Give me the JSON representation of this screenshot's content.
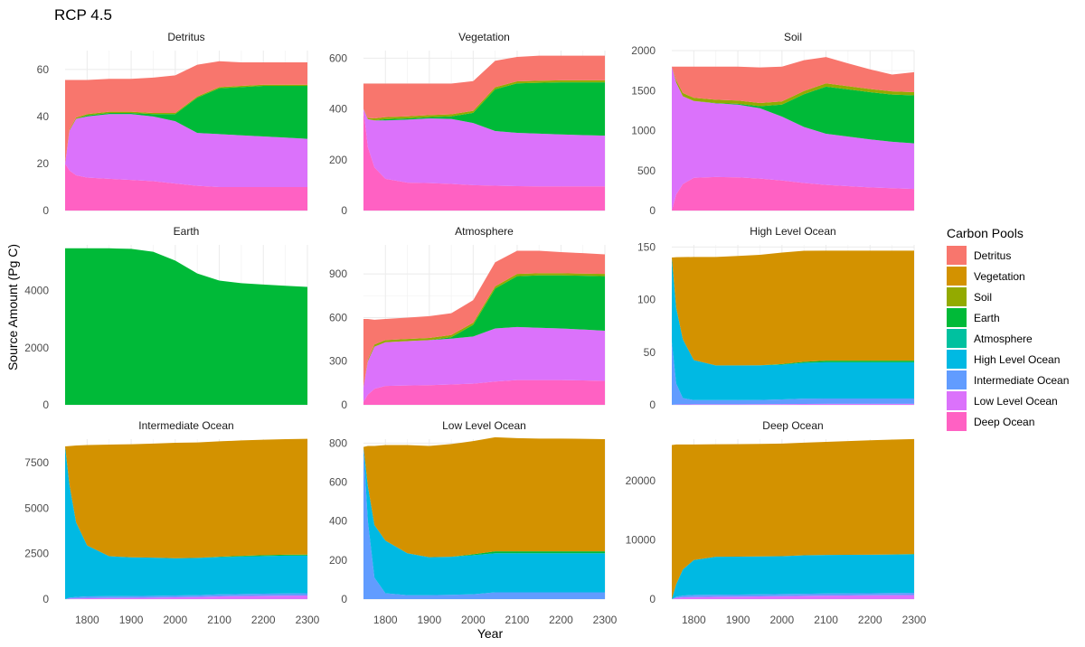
{
  "title": "RCP 4.5",
  "x_axis_title": "Year",
  "y_axis_title": "Source Amount (Pg C)",
  "legend": {
    "title": "Carbon Pools",
    "items": [
      {
        "label": "Detritus",
        "color": "#F8766D"
      },
      {
        "label": "Vegetation",
        "color": "#D39200"
      },
      {
        "label": "Soil",
        "color": "#93AA00"
      },
      {
        "label": "Earth",
        "color": "#00BA38"
      },
      {
        "label": "Atmosphere",
        "color": "#00C19F"
      },
      {
        "label": "High Level Ocean",
        "color": "#00B9E3"
      },
      {
        "label": "Intermediate Ocean",
        "color": "#619CFF"
      },
      {
        "label": "Low Level Ocean",
        "color": "#DB72FB"
      },
      {
        "label": "Deep Ocean",
        "color": "#FF61C3"
      }
    ]
  },
  "chart_data": {
    "type": "area",
    "stacking": "stacked",
    "layout": "facet grid 3x3",
    "shared_x": true,
    "x_ticks": [
      1800,
      1900,
      2000,
      2100,
      2200,
      2300
    ],
    "xlim": [
      1750,
      2300
    ],
    "x": [
      1750,
      1760,
      1775,
      1800,
      1850,
      1900,
      1950,
      2000,
      2050,
      2100,
      2150,
      2200,
      2250,
      2300
    ],
    "grid": true,
    "legend_position": "right",
    "panels": [
      {
        "name": "Detritus",
        "ylim": [
          0,
          68
        ],
        "y_ticks": [
          0,
          20,
          40,
          60
        ],
        "series": [
          {
            "name": "Deep Ocean",
            "values": [
              20,
              17,
              15,
              14,
              13.5,
              13,
              12.5,
              11.5,
              10.5,
              10,
              10,
              10,
              10,
              10
            ]
          },
          {
            "name": "Low Level Ocean",
            "values": [
              0,
              17,
              24,
              26,
              27.5,
              28,
              27.5,
              26.5,
              22.5,
              22.5,
              22,
              21.5,
              21,
              20.5
            ]
          },
          {
            "name": "Earth",
            "values": [
              0,
              0,
              0,
              0.5,
              0.5,
              0.5,
              1,
              3,
              15,
              19.5,
              20.5,
              21.5,
              22,
              22.5
            ]
          },
          {
            "name": "Soil",
            "values": [
              0,
              0.5,
              0.5,
              0.5,
              0.5,
              0.5,
              0.5,
              0.5,
              0.5,
              0.5,
              0.5,
              0.5,
              0.5,
              0.5
            ]
          },
          {
            "name": "Detritus",
            "values": [
              35.5,
              21,
              16,
              14.5,
              14,
              14,
              15,
              16,
              13.5,
              11,
              10,
              9.5,
              9.5,
              9.5
            ]
          }
        ]
      },
      {
        "name": "Vegetation",
        "ylim": [
          0,
          630
        ],
        "y_ticks": [
          0,
          200,
          400,
          600
        ],
        "series": [
          {
            "name": "Deep Ocean",
            "values": [
              400,
              250,
              170,
              125,
              110,
              108,
              105,
              100,
              98,
              96,
              95,
              95,
              95,
              95
            ]
          },
          {
            "name": "Low Level Ocean",
            "values": [
              0,
              110,
              185,
              230,
              248,
              255,
              256,
              245,
              215,
              210,
              208,
              205,
              202,
              200
            ]
          },
          {
            "name": "Earth",
            "values": [
              0,
              0,
              0,
              5,
              5,
              5,
              10,
              40,
              165,
              195,
              200,
              205,
              208,
              210
            ]
          },
          {
            "name": "Soil",
            "values": [
              0,
              5,
              8,
              8,
              8,
              8,
              8,
              8,
              8,
              8,
              8,
              8,
              8,
              8
            ]
          },
          {
            "name": "Detritus",
            "values": [
              100,
              135,
              137,
              132,
              129,
              124,
              121,
              117,
              104,
              96,
              99,
              97,
              97,
              97
            ]
          }
        ]
      },
      {
        "name": "Soil",
        "ylim": [
          0,
          2000
        ],
        "y_ticks": [
          0,
          500,
          1000,
          1500,
          2000
        ],
        "series": [
          {
            "name": "Deep Ocean",
            "values": [
              0,
              200,
              330,
              410,
              420,
              415,
              400,
              375,
              345,
              320,
              305,
              290,
              280,
              270
            ]
          },
          {
            "name": "Low Level Ocean",
            "values": [
              1800,
              1400,
              1100,
              960,
              920,
              910,
              880,
              800,
              700,
              640,
              620,
              600,
              580,
              570
            ]
          },
          {
            "name": "Earth",
            "values": [
              0,
              0,
              0,
              0,
              5,
              10,
              25,
              150,
              410,
              590,
              590,
              590,
              590,
              600
            ]
          },
          {
            "name": "Soil",
            "values": [
              0,
              30,
              40,
              40,
              40,
              40,
              40,
              40,
              40,
              40,
              40,
              40,
              40,
              40
            ]
          },
          {
            "name": "Detritus",
            "values": [
              0,
              170,
              330,
              390,
              415,
              425,
              445,
              435,
              385,
              330,
              285,
              245,
              210,
              250
            ]
          }
        ]
      },
      {
        "name": "Earth",
        "ylim": [
          0,
          5600
        ],
        "y_ticks": [
          0,
          2000,
          4000
        ],
        "series": [
          {
            "name": "Earth",
            "values": [
              5480,
              5480,
              5480,
              5480,
              5480,
              5460,
              5360,
              5050,
              4600,
              4350,
              4260,
              4210,
              4170,
              4130
            ]
          }
        ]
      },
      {
        "name": "Atmosphere",
        "ylim": [
          0,
          1100
        ],
        "y_ticks": [
          0,
          300,
          600,
          900
        ],
        "series": [
          {
            "name": "Deep Ocean",
            "values": [
              20,
              70,
              110,
              130,
              133,
              135,
              140,
              145,
              160,
              170,
              170,
              170,
              168,
              165
            ]
          },
          {
            "name": "Low Level Ocean",
            "values": [
              100,
              230,
              290,
              300,
              305,
              310,
              315,
              325,
              365,
              365,
              360,
              355,
              350,
              345
            ]
          },
          {
            "name": "Earth",
            "values": [
              0,
              0,
              0,
              0,
              0,
              0,
              10,
              80,
              275,
              350,
              360,
              365,
              370,
              375
            ]
          },
          {
            "name": "Soil",
            "values": [
              0,
              10,
              15,
              15,
              15,
              15,
              15,
              15,
              15,
              15,
              15,
              15,
              15,
              15
            ]
          },
          {
            "name": "Detritus",
            "values": [
              470,
              280,
              170,
              145,
              147,
              150,
              150,
              155,
              165,
              160,
              155,
              145,
              140,
              135
            ]
          }
        ]
      },
      {
        "name": "High Level Ocean",
        "ylim": [
          0,
          152
        ],
        "y_ticks": [
          0,
          50,
          100,
          150
        ],
        "series": [
          {
            "name": "Low Level Ocean",
            "values": [
              0,
              0.3,
              0.4,
              0.5,
              0.5,
              0.5,
              0.6,
              0.7,
              0.9,
              1,
              1,
              1,
              1,
              1
            ]
          },
          {
            "name": "Intermediate Ocean",
            "values": [
              60,
              20,
              6,
              4,
              4,
              4,
              4,
              4.5,
              5,
              5,
              5,
              5,
              5,
              5
            ]
          },
          {
            "name": "High Level Ocean",
            "values": [
              80,
              72,
              56,
              38,
              33,
              33,
              33,
              33,
              34,
              34.5,
              34.5,
              34.5,
              34.5,
              34.5
            ]
          },
          {
            "name": "Earth",
            "values": [
              0,
              0,
              0,
              0,
              0,
              0,
              0,
              0.5,
              1,
              1.5,
              1.5,
              1.5,
              1.5,
              1.5
            ]
          },
          {
            "name": "Vegetation",
            "values": [
              0,
              48,
              78,
              98,
              103,
              104,
              105,
              106,
              105.5,
              104.5,
              104.5,
              104.5,
              104.5,
              104.5
            ]
          }
        ]
      },
      {
        "name": "Intermediate Ocean",
        "ylim": [
          0,
          8800
        ],
        "y_ticks": [
          0,
          2500,
          5000,
          7500
        ],
        "series": [
          {
            "name": "Low Level Ocean",
            "values": [
              0,
              30,
              40,
              50,
              60,
              70,
              80,
              100,
              120,
              150,
              170,
              180,
              190,
              200
            ]
          },
          {
            "name": "Intermediate Ocean",
            "values": [
              0,
              50,
              80,
              100,
              100,
              100,
              100,
              100,
              100,
              110,
              110,
              120,
              120,
              120
            ]
          },
          {
            "name": "High Level Ocean",
            "values": [
              8400,
              6200,
              4100,
              2800,
              2200,
              2130,
              2100,
              2050,
              2050,
              2050,
              2060,
              2070,
              2080,
              2080
            ]
          },
          {
            "name": "Earth",
            "values": [
              0,
              0,
              0,
              0,
              0,
              0,
              0,
              0,
              0,
              20,
              40,
              50,
              50,
              50
            ]
          },
          {
            "name": "Vegetation",
            "values": [
              0,
              2140,
              4230,
              5530,
              6140,
              6220,
              6280,
              6350,
              6350,
              6350,
              6350,
              6350,
              6360,
              6370
            ]
          }
        ]
      },
      {
        "name": "Low Level Ocean",
        "ylim": [
          0,
          820
        ],
        "y_ticks": [
          0,
          200,
          400,
          600,
          800
        ],
        "series": [
          {
            "name": "Intermediate Ocean",
            "values": [
              780,
              400,
              110,
              30,
              20,
              20,
              22,
              25,
              35,
              35,
              35,
              35,
              35,
              35
            ]
          },
          {
            "name": "High Level Ocean",
            "values": [
              0,
              180,
              270,
              270,
              215,
              195,
              195,
              200,
              200,
              200,
              200,
              200,
              200,
              200
            ]
          },
          {
            "name": "Earth",
            "values": [
              0,
              0,
              0,
              0,
              0,
              0,
              0,
              5,
              10,
              10,
              10,
              10,
              10,
              10
            ]
          },
          {
            "name": "Vegetation",
            "values": [
              0,
              205,
              405,
              490,
              555,
              570,
              578,
              580,
              585,
              580,
              578,
              578,
              577,
              575
            ]
          }
        ]
      },
      {
        "name": "Deep Ocean",
        "ylim": [
          0,
          27000
        ],
        "y_ticks": [
          0,
          10000,
          20000
        ],
        "series": [
          {
            "name": "Low Level Ocean",
            "values": [
              0,
              200,
              300,
              350,
              400,
              420,
              450,
              500,
              550,
              600,
              620,
              640,
              660,
              680
            ]
          },
          {
            "name": "Intermediate Ocean",
            "values": [
              0,
              200,
              300,
              350,
              350,
              350,
              350,
              350,
              350,
              350,
              350,
              360,
              370,
              380
            ]
          },
          {
            "name": "High Level Ocean",
            "values": [
              0,
              2100,
              4400,
              5900,
              6400,
              6400,
              6400,
              6400,
              6500,
              6500,
              6500,
              6500,
              6500,
              6500
            ]
          },
          {
            "name": "Earth",
            "values": [
              0,
              0,
              0,
              0,
              0,
              0,
              0,
              0,
              0,
              0,
              0,
              0,
              0,
              50
            ]
          },
          {
            "name": "Vegetation",
            "values": [
              26000,
              23600,
              21100,
              19500,
              19000,
              19000,
              19000,
              19000,
              19000,
              19100,
              19200,
              19300,
              19400,
              19400
            ]
          }
        ]
      }
    ]
  }
}
